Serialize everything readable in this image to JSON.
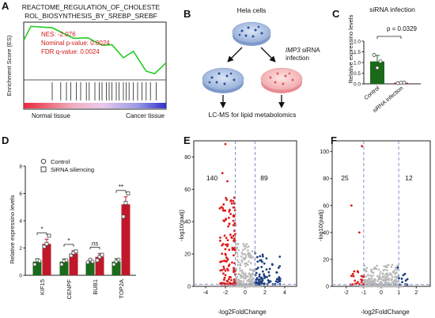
{
  "panels": {
    "A": "A",
    "B": "B",
    "C": "C",
    "D": "D",
    "E": "E",
    "F": "F"
  },
  "panelA": {
    "title_line1": "REACTOME_REGULATION_OF_CHOLESTE",
    "title_line2": "ROL_BIOSYNTHESIS_BY_SREBP_SREBF",
    "ylabel": "Enrichment Score (ES)",
    "stats": [
      "NES: -2.076",
      "Nominal p-value: 0.0024",
      "FDR q-value: 0.0024"
    ],
    "left_label": "Normal tissue",
    "right_label": "Cancer tissue",
    "colors": {
      "curve": "#22cc22",
      "stats_text": "#d11a1a"
    }
  },
  "panelB": {
    "top": "Hela cells",
    "right_italic": "IMP3",
    "right_rest": " siRNA",
    "right_line2": "infection",
    "bottom": "LC-MS for lipid metabolomics"
  },
  "chart_data": [
    {
      "type": "bar",
      "panel": "C",
      "title": "siRNA infection",
      "ylabel": "Relative expressino levels",
      "categories": [
        "Control",
        "siRNA infection"
      ],
      "values": [
        1.05,
        0.05
      ],
      "errors": [
        0.28,
        0.02
      ],
      "points": [
        [
          1.35,
          0.75,
          1.05
        ],
        [
          0.03,
          0.05,
          0.06
        ]
      ],
      "ylim": [
        0,
        2.0
      ],
      "yticks": [
        "0.0",
        "0.5",
        "1.0",
        "1.5",
        "2.0"
      ],
      "annotation": "p = 0.0329",
      "colors": [
        "#1a6a1a",
        "#c0182a"
      ]
    },
    {
      "type": "bar",
      "panel": "D",
      "ylabel": "Relative expressino levels",
      "categories": [
        "KIF15",
        "CENPF",
        "BUB1",
        "TOP2A"
      ],
      "series": [
        {
          "name": "Control",
          "values": [
            1.0,
            1.0,
            1.0,
            1.0
          ],
          "errors": [
            0.22,
            0.2,
            0.2,
            0.22
          ],
          "points": [
            [
              0.8,
              1.1,
              1.05
            ],
            [
              0.8,
              1.05,
              1.1
            ],
            [
              0.95,
              1.15,
              1.0
            ],
            [
              0.8,
              1.0,
              1.15
            ]
          ]
        },
        {
          "name": "SiRNA siliencing",
          "values": [
            2.3,
            1.6,
            1.35,
            5.2
          ],
          "errors": [
            0.35,
            0.2,
            0.25,
            0.55
          ],
          "points": [
            [
              2.1,
              2.3,
              2.9
            ],
            [
              1.45,
              1.65,
              1.75
            ],
            [
              1.1,
              1.35,
              1.5
            ],
            [
              4.3,
              5.3,
              6.0
            ]
          ]
        }
      ],
      "significance": [
        "*",
        "*",
        "ns",
        "**"
      ],
      "ylim": [
        0,
        8
      ],
      "yticks": [
        "0",
        "2",
        "4",
        "6",
        "8"
      ],
      "legend": "top-left",
      "colors": [
        "#1a6a1a",
        "#c0182a"
      ]
    },
    {
      "type": "scatter",
      "panel": "E",
      "xlabel": "-log2FoldChange",
      "ylabel": "-log10(padj)",
      "xlim": [
        -5.2,
        5.2
      ],
      "ylim": [
        0,
        90
      ],
      "xticks": [
        -4,
        -2,
        0,
        2,
        4
      ],
      "yticks": [
        0,
        20,
        40,
        60,
        80
      ],
      "counts": {
        "down": "140",
        "up": "89"
      },
      "thresholds": {
        "x": [
          -1,
          1
        ],
        "y": 1.3
      }
    },
    {
      "type": "scatter",
      "panel": "F",
      "xlabel": "-log2FoldChange",
      "ylabel": "-log10(padj)",
      "xlim": [
        -2.8,
        2.8
      ],
      "ylim": [
        0,
        108
      ],
      "xticks": [
        -2,
        -1,
        0,
        1,
        2
      ],
      "yticks": [
        0,
        20,
        40,
        60,
        80,
        100
      ],
      "counts": {
        "down": "25",
        "up": "12"
      },
      "thresholds": {
        "x": [
          -1,
          1
        ],
        "y": 1.3
      }
    }
  ]
}
